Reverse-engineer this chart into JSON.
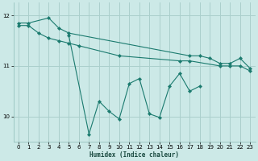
{
  "series": [
    {
      "x": [
        0,
        1,
        3,
        4,
        5,
        17,
        18,
        19,
        20,
        21,
        22,
        23
      ],
      "y": [
        11.85,
        11.85,
        11.95,
        11.75,
        11.65,
        11.2,
        11.2,
        11.15,
        11.05,
        11.05,
        11.15,
        10.95
      ]
    },
    {
      "x": [
        0,
        1,
        2,
        3,
        4,
        5,
        6,
        10,
        16,
        17,
        20,
        21,
        22,
        23
      ],
      "y": [
        11.8,
        11.8,
        11.65,
        11.55,
        11.5,
        11.45,
        11.4,
        11.2,
        11.1,
        11.1,
        11.0,
        11.0,
        11.0,
        10.9
      ]
    },
    {
      "x": [
        5,
        7,
        8,
        9,
        10,
        11,
        12,
        13,
        14,
        15,
        16,
        17,
        18
      ],
      "y": [
        11.6,
        9.65,
        10.3,
        10.1,
        9.95,
        10.65,
        10.75,
        10.05,
        9.98,
        10.6,
        10.85,
        10.5,
        10.6
      ]
    }
  ],
  "line_color": "#1a7a6e",
  "bg_color": "#cce9e7",
  "grid_color": "#aacfcc",
  "xlabel": "Humidex (Indice chaleur)",
  "ylim": [
    9.5,
    12.25
  ],
  "xlim": [
    -0.5,
    23.5
  ],
  "yticks": [
    10,
    11,
    12
  ],
  "xticks": [
    0,
    1,
    2,
    3,
    4,
    5,
    6,
    7,
    8,
    9,
    10,
    11,
    12,
    13,
    14,
    15,
    16,
    17,
    18,
    19,
    20,
    21,
    22,
    23
  ]
}
